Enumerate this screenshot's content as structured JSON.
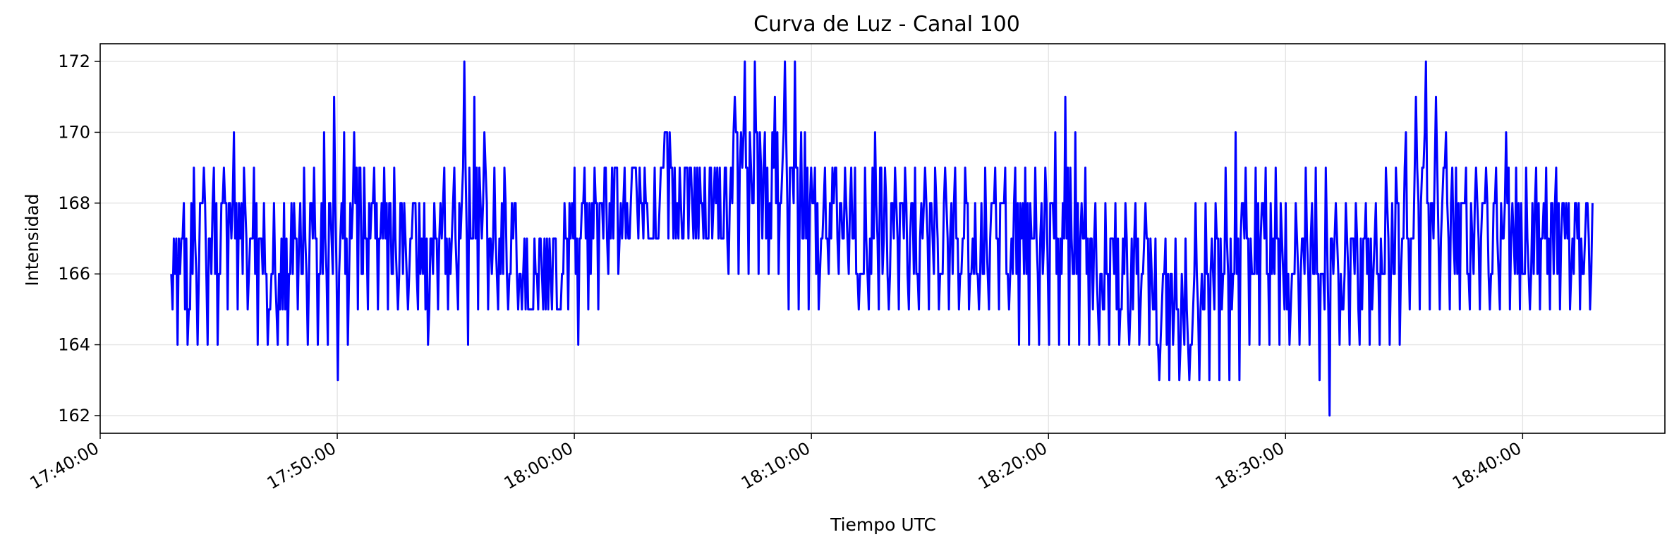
{
  "chart_data": {
    "type": "line",
    "title": "Curva de Luz - Canal 100",
    "xlabel": "Tiempo UTC",
    "ylabel": "Intensidad",
    "x_ticks": [
      "17:40:00",
      "17:50:00",
      "18:00:00",
      "18:10:00",
      "18:20:00",
      "18:30:00",
      "18:40:00"
    ],
    "xlim": [
      "17:40:00",
      "18:46:00"
    ],
    "y_ticks": [
      162,
      164,
      166,
      168,
      170,
      172
    ],
    "ylim": [
      161.5,
      172.5
    ],
    "grid": true,
    "series": [
      {
        "color": "#0000ff",
        "x_start": "17:43:00",
        "x_end": "18:43:00",
        "envelope_min": [
          164,
          164,
          164,
          164,
          164,
          165,
          165,
          165,
          164,
          164,
          164,
          164,
          165,
          164,
          164,
          164,
          163,
          164,
          165,
          165,
          165,
          165,
          165,
          165,
          165,
          164,
          165,
          165,
          165,
          164,
          165,
          165,
          165,
          165,
          165,
          165,
          165,
          165,
          165,
          165,
          164,
          165,
          165,
          166,
          166,
          167,
          167,
          167,
          167,
          167,
          167,
          167,
          167,
          167,
          167,
          166,
          166,
          166,
          166,
          166,
          166,
          165,
          165,
          165,
          165,
          166,
          166,
          166,
          165,
          165,
          165,
          165,
          165,
          165,
          165,
          165,
          165,
          165,
          165,
          165,
          165,
          165,
          165,
          165,
          164,
          164,
          164,
          164,
          164,
          164,
          164,
          164,
          164,
          164,
          164,
          164,
          164,
          164,
          163,
          163,
          163,
          163,
          163,
          163,
          163,
          163,
          163,
          164,
          164,
          164,
          164,
          164,
          164,
          164,
          163,
          162,
          164,
          164,
          164,
          164,
          164,
          164,
          164,
          165,
          165,
          165,
          165,
          165,
          165,
          165,
          165,
          165,
          165,
          165,
          165,
          165,
          165,
          165,
          165,
          165,
          165,
          165
        ],
        "envelope_max": [
          167,
          168,
          169,
          169,
          169,
          169,
          170,
          169,
          169,
          168,
          168,
          168,
          168,
          169,
          169,
          170,
          171,
          170,
          170,
          169,
          169,
          169,
          169,
          168,
          168,
          168,
          168,
          169,
          169,
          172,
          171,
          170,
          169,
          169,
          168,
          167,
          167,
          167,
          167,
          168,
          169,
          169,
          169,
          169,
          169,
          169,
          169,
          169,
          169,
          170,
          169,
          169,
          169,
          169,
          169,
          169,
          171,
          172,
          172,
          170,
          171,
          172,
          172,
          170,
          169,
          169,
          169,
          169,
          169,
          169,
          170,
          169,
          169,
          169,
          169,
          169,
          169,
          169,
          169,
          169,
          168,
          169,
          169,
          169,
          169,
          169,
          169,
          169,
          170,
          171,
          170,
          169,
          168,
          168,
          168,
          168,
          168,
          168,
          167,
          167,
          167,
          167,
          168,
          168,
          168,
          169,
          170,
          169,
          169,
          169,
          169,
          168,
          168,
          169,
          169,
          169,
          168,
          168,
          168,
          168,
          168,
          169,
          169,
          170,
          171,
          172,
          171,
          170,
          169,
          169,
          169,
          169,
          169,
          170,
          169,
          169,
          169,
          169,
          169,
          168,
          168,
          168
        ]
      }
    ]
  }
}
